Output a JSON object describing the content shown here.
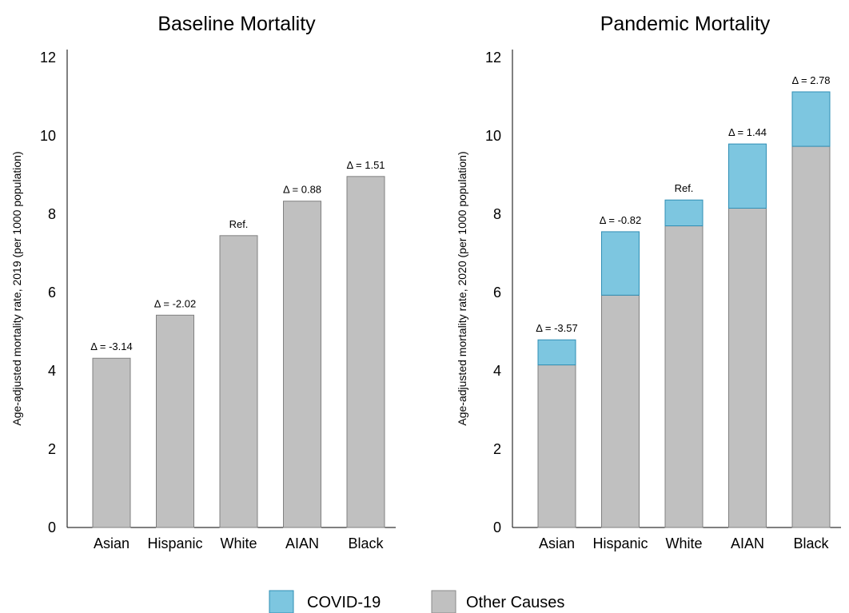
{
  "chart_data": [
    {
      "type": "bar",
      "title": "Baseline Mortality",
      "ylabel": "Age-adjusted mortality rate, 2019 (per 1000 population)",
      "xlabel": "",
      "ylim": [
        0,
        12.2
      ],
      "yticks": [
        0,
        2,
        4,
        6,
        8,
        10,
        12
      ],
      "categories": [
        "Asian",
        "Hispanic",
        "White",
        "AIAN",
        "Black"
      ],
      "series": [
        {
          "name": "Other Causes",
          "values": [
            4.32,
            5.42,
            7.45,
            8.33,
            8.96
          ]
        }
      ],
      "annotations": [
        "Δ = -3.14",
        "Δ = -2.02",
        "Ref.",
        "Δ = 0.88",
        "Δ = 1.51"
      ]
    },
    {
      "type": "bar",
      "stacked": true,
      "title": "Pandemic Mortality",
      "ylabel": "Age-adjusted mortality rate, 2020 (per 1000 population)",
      "xlabel": "",
      "ylim": [
        0,
        12.2
      ],
      "yticks": [
        0,
        2,
        4,
        6,
        8,
        10,
        12
      ],
      "categories": [
        "Asian",
        "Hispanic",
        "White",
        "AIAN",
        "Black"
      ],
      "series": [
        {
          "name": "Other Causes",
          "values": [
            4.15,
            5.93,
            7.7,
            8.15,
            9.73
          ]
        },
        {
          "name": "COVID-19",
          "values": [
            0.64,
            1.62,
            0.66,
            1.64,
            1.39
          ]
        }
      ],
      "annotations": [
        "Δ = -3.57",
        "Δ = -0.82",
        "Ref.",
        "Δ = 1.44",
        "Δ = 2.78"
      ]
    }
  ],
  "legend": {
    "position": "bottom-center",
    "items": [
      {
        "label": "COVID-19",
        "color": "#7dc6e0",
        "border": "#2f8fb5"
      },
      {
        "label": "Other Causes",
        "color": "#c0c0c0",
        "border": "#8a8a8a"
      }
    ]
  },
  "colors": {
    "other_fill": "#c0c0c0",
    "other_stroke": "#808080",
    "covid_fill": "#7dc6e0",
    "covid_stroke": "#2f8fb5",
    "axis": "#000000"
  }
}
